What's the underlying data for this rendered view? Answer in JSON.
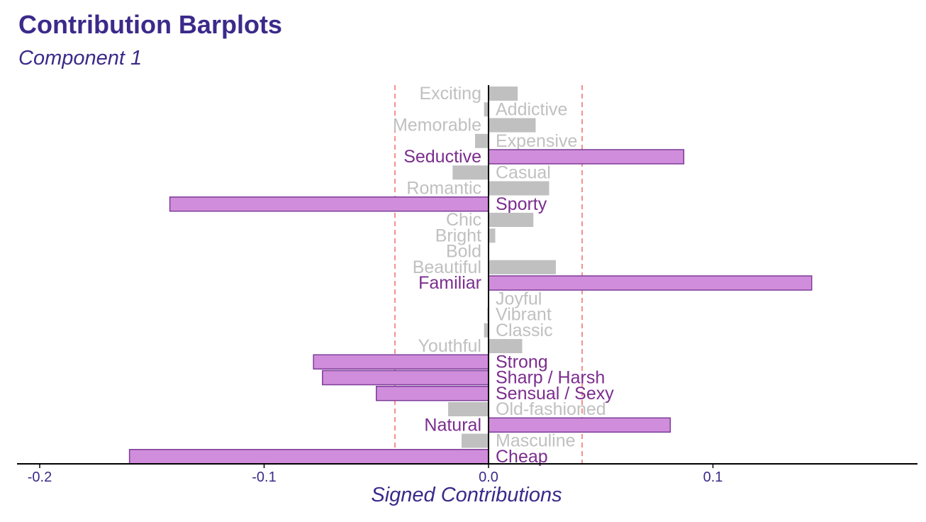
{
  "title": "Contribution Barplots",
  "subtitle": "Component 1",
  "chart_data": {
    "type": "bar",
    "orientation": "horizontal",
    "xlabel": "Signed Contributions",
    "xlim": [
      -0.2,
      0.19
    ],
    "xticks": [
      -0.2,
      -0.1,
      0.0,
      0.1
    ],
    "xtick_labels": [
      "-0.2",
      "-0.1",
      "0.0",
      "0.1"
    ],
    "threshold": 0.0417,
    "colors": {
      "significant": "#d08ddb",
      "significant_border": "#7d3c98",
      "significant_text": "#7b2d8e",
      "other": "#c0c0c0",
      "threshold": "#ee7777",
      "axis_label": "#3b2a8a"
    },
    "items": [
      {
        "label": "Exciting",
        "value": 0.013,
        "significant": false
      },
      {
        "label": "Addictive",
        "value": -0.002,
        "significant": false
      },
      {
        "label": "Memorable",
        "value": 0.021,
        "significant": false
      },
      {
        "label": "Expensive",
        "value": -0.006,
        "significant": false
      },
      {
        "label": "Seductive",
        "value": 0.087,
        "significant": true
      },
      {
        "label": "Casual",
        "value": -0.016,
        "significant": false
      },
      {
        "label": "Romantic",
        "value": 0.027,
        "significant": false
      },
      {
        "label": "Sporty",
        "value": -0.142,
        "significant": true
      },
      {
        "label": "Chic",
        "value": 0.02,
        "significant": false
      },
      {
        "label": "Bright",
        "value": 0.003,
        "significant": false
      },
      {
        "label": "Bold",
        "value": 0.0,
        "significant": false
      },
      {
        "label": "Beautiful",
        "value": 0.03,
        "significant": false
      },
      {
        "label": "Familiar",
        "value": 0.144,
        "significant": true
      },
      {
        "label": "Joyful",
        "value": 0.0,
        "significant": false
      },
      {
        "label": "Vibrant",
        "value": -0.0005,
        "significant": false
      },
      {
        "label": "Classic",
        "value": -0.002,
        "significant": false
      },
      {
        "label": "Youthful",
        "value": 0.015,
        "significant": false
      },
      {
        "label": "Strong",
        "value": -0.078,
        "significant": true
      },
      {
        "label": "Sharp / Harsh",
        "value": -0.074,
        "significant": true
      },
      {
        "label": "Sensual / Sexy",
        "value": -0.05,
        "significant": true
      },
      {
        "label": "Old-fashioned",
        "value": -0.018,
        "significant": false
      },
      {
        "label": "Natural",
        "value": 0.081,
        "significant": true
      },
      {
        "label": "Masculine",
        "value": -0.012,
        "significant": false
      },
      {
        "label": "Cheap",
        "value": -0.16,
        "significant": true
      }
    ]
  }
}
